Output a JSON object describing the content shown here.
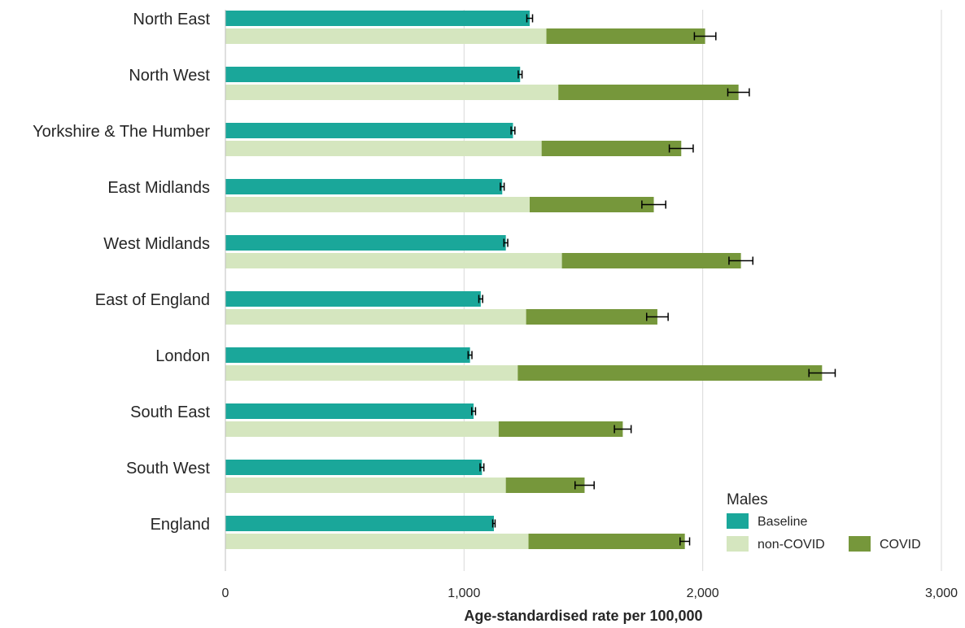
{
  "chart_data": {
    "type": "bar",
    "orientation": "horizontal",
    "categories": [
      "North East",
      "North West",
      "Yorkshire & The Humber",
      "East Midlands",
      "West Midlands",
      "East of England",
      "London",
      "South East",
      "South West",
      "England"
    ],
    "series": [
      {
        "name": "Baseline",
        "color": "#1aa79a",
        "values": [
          1275,
          1235,
          1205,
          1160,
          1175,
          1070,
          1025,
          1040,
          1075,
          1125
        ],
        "error": [
          12,
          8,
          8,
          8,
          8,
          8,
          8,
          8,
          8,
          5
        ]
      },
      {
        "name": "non-COVID",
        "color": "#d5e6bf",
        "values": [
          1345,
          1395,
          1325,
          1275,
          1410,
          1260,
          1225,
          1145,
          1175,
          1270
        ]
      },
      {
        "name": "COVID",
        "color": "#76973b",
        "values": [
          665,
          755,
          585,
          520,
          750,
          550,
          1275,
          520,
          330,
          655
        ],
        "error": [
          45,
          45,
          50,
          50,
          50,
          45,
          55,
          35,
          40,
          20
        ]
      }
    ],
    "xlabel": "Age-standardised rate per 100,000",
    "xlim": [
      0,
      3000
    ],
    "xticks": [
      0,
      1000,
      2000,
      3000
    ],
    "xtick_labels": [
      "0",
      "1,000",
      "2,000",
      "3,000"
    ],
    "grid": true,
    "legend": {
      "title": "Males",
      "position": "bottom-right",
      "entries": [
        "Baseline",
        "non-COVID",
        "COVID"
      ]
    }
  }
}
